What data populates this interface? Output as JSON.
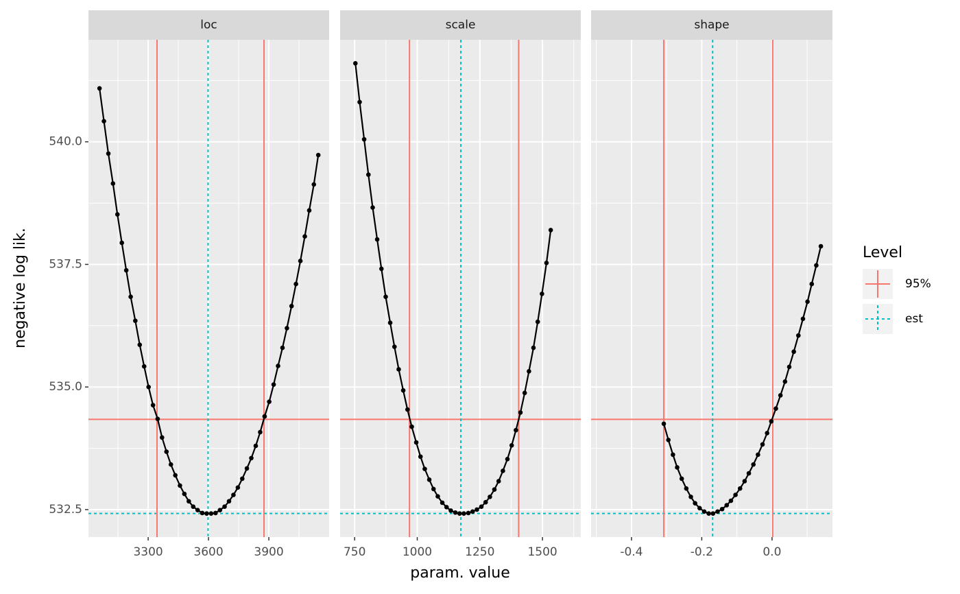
{
  "chart_data": {
    "type": "line",
    "x_label": "param. value",
    "y_label": "negative log lik.",
    "ylim": [
      531.94,
      542.08
    ],
    "yticks": [
      532.5,
      {
        "value": 535,
        "label": "535.0"
      },
      537.5,
      {
        "value": 540,
        "label": "540.0"
      }
    ],
    "yminor": [
      533.75,
      536.25,
      538.75,
      541.25
    ],
    "ci_level": 534.34,
    "min_level": 532.42,
    "grid": true,
    "line_color": "#000000",
    "legend": {
      "title": "Level",
      "position": "right",
      "entries": [
        {
          "name": "95%",
          "color": "#F8766D",
          "linetype": "solid"
        },
        {
          "name": "est",
          "color": "#00BFC4",
          "linetype": "dotted"
        }
      ]
    },
    "facets": [
      {
        "title": "loc",
        "xlim": [
          3003,
          4200
        ],
        "xticks": [
          3300,
          3600,
          3900
        ],
        "xminor": [
          3150,
          3450,
          3750,
          4050
        ],
        "ci": [
          3344,
          3876
        ],
        "est": 3598,
        "x": [
          3058,
          3080,
          3102,
          3125,
          3147,
          3169,
          3191,
          3213,
          3236,
          3258,
          3280,
          3302,
          3324,
          3347,
          3369,
          3391,
          3413,
          3435,
          3458,
          3480,
          3502,
          3524,
          3546,
          3569,
          3591,
          3613,
          3635,
          3657,
          3680,
          3702,
          3724,
          3746,
          3768,
          3791,
          3813,
          3835,
          3857,
          3879,
          3902,
          3924,
          3946,
          3968,
          3990,
          4013,
          4035,
          4057,
          4079,
          4101,
          4124,
          4146
        ],
        "values": [
          541.09,
          540.42,
          539.76,
          539.15,
          538.52,
          537.94,
          537.38,
          536.84,
          536.35,
          535.86,
          535.42,
          535.0,
          534.63,
          534.35,
          533.97,
          533.68,
          533.42,
          533.2,
          532.99,
          532.82,
          532.67,
          532.56,
          532.49,
          532.43,
          532.42,
          532.42,
          532.43,
          532.49,
          532.56,
          532.67,
          532.8,
          532.95,
          533.13,
          533.34,
          533.55,
          533.8,
          534.08,
          534.4,
          534.7,
          535.05,
          535.43,
          535.8,
          536.2,
          536.65,
          537.1,
          537.57,
          538.07,
          538.6,
          539.13,
          539.73
        ]
      },
      {
        "title": "scale",
        "xlim": [
          692,
          1653
        ],
        "xticks": [
          750,
          1000,
          1250,
          1500
        ],
        "xminor": [
          875,
          1125,
          1375,
          1625
        ],
        "ci": [
          969,
          1405
        ],
        "est": 1174,
        "x": [
          753,
          770,
          788,
          805,
          822,
          840,
          857,
          874,
          892,
          909,
          926,
          944,
          961,
          978,
          996,
          1013,
          1030,
          1048,
          1065,
          1082,
          1100,
          1117,
          1134,
          1152,
          1169,
          1186,
          1204,
          1221,
          1238,
          1256,
          1273,
          1290,
          1308,
          1325,
          1342,
          1360,
          1377,
          1394,
          1412,
          1429,
          1446,
          1464,
          1481,
          1498,
          1516,
          1533
        ],
        "values": [
          541.6,
          540.81,
          540.05,
          539.33,
          538.66,
          538.01,
          537.41,
          536.84,
          536.31,
          535.82,
          535.36,
          534.93,
          534.54,
          534.19,
          533.87,
          533.58,
          533.33,
          533.11,
          532.92,
          532.77,
          532.64,
          532.55,
          532.48,
          532.44,
          532.42,
          532.42,
          532.43,
          532.46,
          532.5,
          532.56,
          532.65,
          532.76,
          532.91,
          533.08,
          533.29,
          533.53,
          533.81,
          534.12,
          534.48,
          534.88,
          535.32,
          535.8,
          536.33,
          536.9,
          537.53,
          538.2
        ]
      },
      {
        "title": "shape",
        "xlim": [
          -0.515,
          0.172
        ],
        "xticks": [
          -0.4,
          -0.2,
          {
            "value": 0,
            "label": "0.0"
          }
        ],
        "xminor": [
          -0.5,
          -0.3,
          -0.1,
          0.1
        ],
        "ci": [
          -0.308,
          0.002
        ],
        "est": -0.169,
        "x": [
          -0.308,
          -0.295,
          -0.282,
          -0.27,
          -0.257,
          -0.244,
          -0.231,
          -0.219,
          -0.206,
          -0.193,
          -0.18,
          -0.168,
          -0.155,
          -0.142,
          -0.129,
          -0.117,
          -0.104,
          -0.091,
          -0.078,
          -0.066,
          -0.053,
          -0.04,
          -0.027,
          -0.014,
          -0.002,
          0.011,
          0.024,
          0.037,
          0.049,
          0.062,
          0.075,
          0.088,
          0.101,
          0.113,
          0.126,
          0.139
        ],
        "values": [
          534.25,
          533.92,
          533.62,
          533.36,
          533.13,
          532.93,
          532.76,
          532.63,
          532.53,
          532.46,
          532.42,
          532.42,
          532.46,
          532.51,
          532.59,
          532.68,
          532.8,
          532.93,
          533.08,
          533.24,
          533.42,
          533.62,
          533.83,
          534.06,
          534.3,
          534.56,
          534.83,
          535.11,
          535.41,
          535.72,
          536.05,
          536.39,
          536.74,
          537.1,
          537.48,
          537.87
        ]
      }
    ]
  }
}
